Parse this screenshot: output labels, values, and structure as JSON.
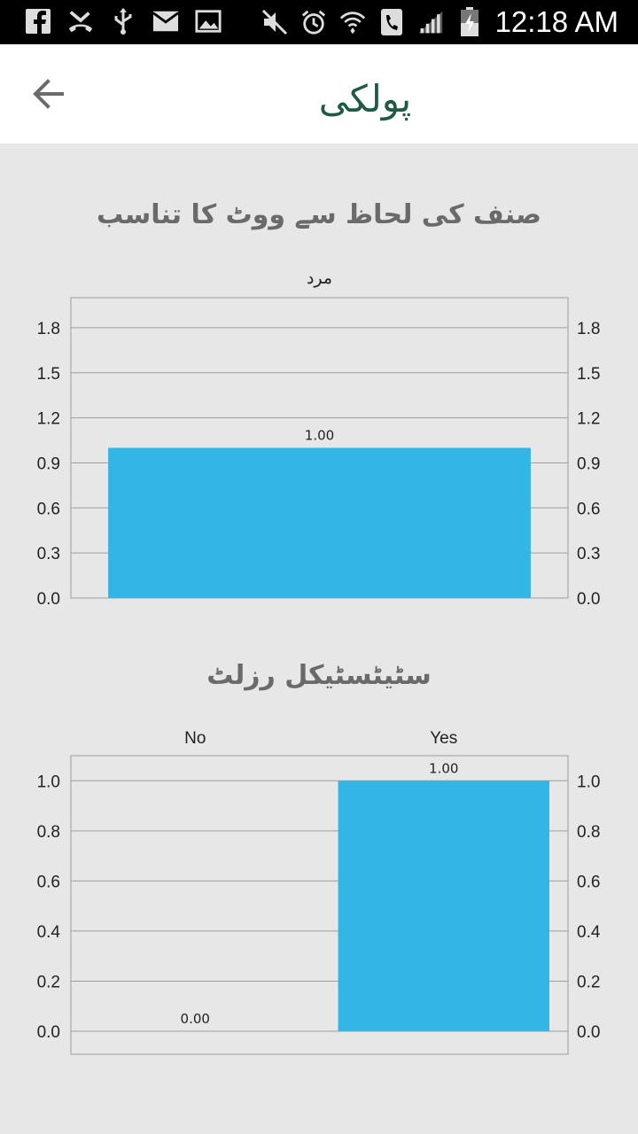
{
  "status_bar": {
    "time": "12:18 AM",
    "icons_left": [
      "facebook-icon",
      "missed-call-icon",
      "usb-icon",
      "email-icon",
      "image-icon"
    ],
    "icons_right": [
      "mute-icon",
      "alarm-icon",
      "wifi-icon",
      "phone-call-icon",
      "signal-icon",
      "battery-icon"
    ]
  },
  "app_bar": {
    "back_icon": "arrow-left-icon",
    "logo_text": "پولکی",
    "logo_color": "#1e5a46"
  },
  "colors": {
    "bar": "#33b5e5",
    "background": "#e7e7e7",
    "grid": "#9e9e9e",
    "title": "#6a6a6a"
  },
  "chart_data": [
    {
      "type": "bar",
      "title": "صنف کی لحاظ سے ووٹ کا تناسب",
      "categories": [
        "مرد"
      ],
      "values": [
        1.0
      ],
      "value_labels": [
        "1.00"
      ],
      "ylim": [
        0.0,
        2.0
      ],
      "yticks": [
        0.0,
        0.3,
        0.6,
        0.9,
        1.2,
        1.5,
        1.8
      ],
      "ytick_labels": [
        "0.0",
        "0.3",
        "0.6",
        "0.9",
        "1.2",
        "1.5",
        "1.8"
      ],
      "grid": true,
      "axes": "left-and-right"
    },
    {
      "type": "bar",
      "title": "سٹیٹسٹیکل رزلٹ",
      "categories": [
        "No",
        "Yes"
      ],
      "values": [
        0.0,
        1.0
      ],
      "value_labels": [
        "0.00",
        "1.00"
      ],
      "ylim": [
        0.0,
        1.1
      ],
      "yticks": [
        0.0,
        0.2,
        0.4,
        0.6,
        0.8,
        1.0
      ],
      "ytick_labels": [
        "0.0",
        "0.2",
        "0.4",
        "0.6",
        "0.8",
        "1.0"
      ],
      "grid": true,
      "axes": "left-and-right"
    }
  ]
}
